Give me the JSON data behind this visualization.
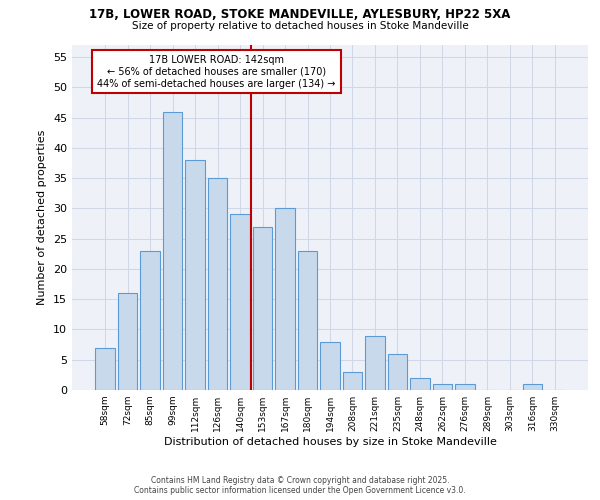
{
  "title1": "17B, LOWER ROAD, STOKE MANDEVILLE, AYLESBURY, HP22 5XA",
  "title2": "Size of property relative to detached houses in Stoke Mandeville",
  "xlabel": "Distribution of detached houses by size in Stoke Mandeville",
  "ylabel": "Number of detached properties",
  "categories": [
    "58sqm",
    "72sqm",
    "85sqm",
    "99sqm",
    "112sqm",
    "126sqm",
    "140sqm",
    "153sqm",
    "167sqm",
    "180sqm",
    "194sqm",
    "208sqm",
    "221sqm",
    "235sqm",
    "248sqm",
    "262sqm",
    "276sqm",
    "289sqm",
    "303sqm",
    "316sqm",
    "330sqm"
  ],
  "values": [
    7,
    16,
    23,
    46,
    38,
    35,
    29,
    27,
    30,
    23,
    8,
    3,
    9,
    6,
    2,
    1,
    1,
    0,
    0,
    1,
    0
  ],
  "bar_color": "#c9d9ec",
  "bar_edge_color": "#5b9bd5",
  "grid_color": "#d0d8e8",
  "background_color": "#eef2f8",
  "annotation_box_color": "#c00000",
  "vline_color": "#c00000",
  "vline_x_index": 6.5,
  "annotation_title": "17B LOWER ROAD: 142sqm",
  "annotation_line1": "← 56% of detached houses are smaller (170)",
  "annotation_line2": "44% of semi-detached houses are larger (134) →",
  "ylim": [
    0,
    57
  ],
  "yticks": [
    0,
    5,
    10,
    15,
    20,
    25,
    30,
    35,
    40,
    45,
    50,
    55
  ],
  "footer1": "Contains HM Land Registry data © Crown copyright and database right 2025.",
  "footer2": "Contains public sector information licensed under the Open Government Licence v3.0."
}
